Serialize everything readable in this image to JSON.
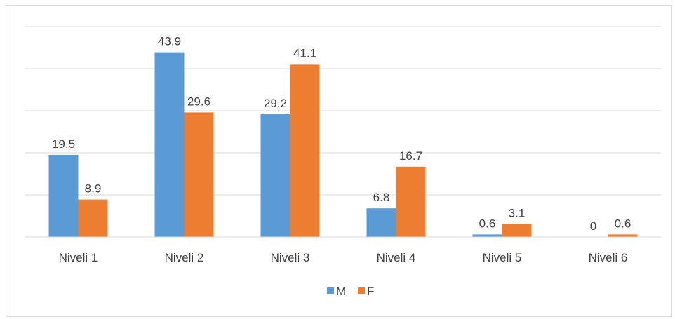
{
  "chart_data": {
    "type": "bar",
    "categories": [
      "Niveli 1",
      "Niveli 2",
      "Niveli 3",
      "Niveli 4",
      "Niveli 5",
      "Niveli 6"
    ],
    "series": [
      {
        "name": "M",
        "values": [
          19.5,
          43.9,
          29.2,
          6.8,
          0.6,
          0
        ],
        "labels": [
          "19.5",
          "43.9",
          "29.2",
          "6.8",
          "0.6",
          "0"
        ],
        "color": "#5b9bd5"
      },
      {
        "name": "F",
        "values": [
          8.9,
          29.6,
          41.1,
          16.7,
          3.1,
          0.6
        ],
        "labels": [
          "8.9",
          "29.6",
          "41.1",
          "16.7",
          "3.1",
          "0.6"
        ],
        "color": "#ed7d31"
      }
    ],
    "ylim": [
      0,
      50
    ],
    "grid": true,
    "legend_position": "bottom"
  }
}
